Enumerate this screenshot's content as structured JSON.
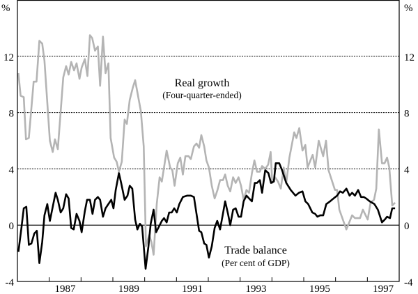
{
  "chart_data": {
    "type": "line",
    "title": "",
    "xlabel": "",
    "ylabel": "%",
    "ylim": [
      -4,
      16
    ],
    "xlim": [
      1986,
      1998
    ],
    "grid": true,
    "y_ticks": [
      -4,
      0,
      4,
      8,
      12
    ],
    "x_tick_labels": [
      "1987",
      "1989",
      "1991",
      "1993",
      "1995",
      "1997"
    ],
    "annotations": [
      {
        "text": "Real growth",
        "sub": "(Four-quarter-ended)",
        "series": "Real growth"
      },
      {
        "text": "Trade balance",
        "sub": "(Per cent of GDP)",
        "series": "Trade balance"
      }
    ],
    "series": [
      {
        "name": "Real growth",
        "color": "#b4b4b4",
        "x": [
          1986.03,
          1986.1,
          1986.2,
          1986.27,
          1986.36,
          1986.51,
          1986.6,
          1986.69,
          1986.78,
          1986.85,
          1987.02,
          1987.11,
          1987.18,
          1987.27,
          1987.44,
          1987.53,
          1987.61,
          1987.69,
          1987.78,
          1987.86,
          1987.95,
          1988.02,
          1988.12,
          1988.2,
          1988.28,
          1988.35,
          1988.44,
          1988.53,
          1988.6,
          1988.69,
          1988.77,
          1988.86,
          1988.93,
          1989.04,
          1989.12,
          1989.19,
          1989.28,
          1989.37,
          1989.44,
          1989.53,
          1989.63,
          1989.7,
          1989.88,
          1989.97,
          1990.04,
          1990.14,
          1990.21,
          1990.28,
          1990.38,
          1990.47,
          1990.54,
          1990.69,
          1990.8,
          1990.87,
          1990.94,
          1991.04,
          1991.12,
          1991.2,
          1991.28,
          1991.38,
          1991.45,
          1991.55,
          1991.63,
          1991.71,
          1991.78,
          1991.87,
          1991.94,
          1992.02,
          1992.11,
          1992.2,
          1992.29,
          1992.37,
          1992.46,
          1992.53,
          1992.61,
          1992.69,
          1992.78,
          1992.86,
          1992.95,
          1993.03,
          1993.11,
          1993.2,
          1993.28,
          1993.37,
          1993.45,
          1993.53,
          1993.62,
          1993.69,
          1993.79,
          1993.88,
          1993.96,
          1994.01,
          1994.1,
          1994.19,
          1994.28,
          1994.37,
          1994.45,
          1994.55,
          1994.7,
          1994.77,
          1994.86,
          1994.96,
          1995.05,
          1995.12,
          1995.28,
          1995.36,
          1995.47,
          1995.61,
          1995.7,
          1995.78,
          1995.98,
          1996.05,
          1996.12,
          1996.34,
          1996.52,
          1996.61,
          1996.77,
          1996.86,
          1997.01,
          1997.1,
          1997.21,
          1997.28,
          1997.36,
          1997.46,
          1997.54,
          1997.62,
          1997.69,
          1997.78,
          1997.87
        ],
        "y": [
          10.8,
          9.2,
          9.1,
          6.1,
          6.2,
          10.2,
          10.2,
          13.1,
          12.9,
          11.7,
          6.0,
          5.2,
          6.1,
          5.4,
          10.5,
          11.3,
          10.7,
          11.6,
          11.0,
          11.5,
          10.4,
          11.2,
          11.8,
          10.6,
          13.5,
          13.3,
          12.4,
          12.7,
          9.9,
          13.4,
          10.8,
          11.5,
          6.2,
          4.8,
          4.5,
          3.8,
          4.5,
          7.5,
          7.2,
          8.9,
          9.8,
          10.3,
          8.1,
          5.6,
          -1.5,
          -0.7,
          -1.2,
          -2.1,
          1.5,
          3.4,
          3.1,
          5.3,
          4.1,
          3.9,
          2.8,
          4.4,
          4.8,
          3.6,
          4.9,
          4.9,
          4.7,
          5.6,
          5.8,
          5.5,
          6.4,
          5.6,
          4.6,
          4.1,
          2.8,
          1.9,
          2.5,
          3.2,
          3.2,
          3.6,
          2.8,
          2.4,
          3.4,
          3.0,
          3.4,
          2.8,
          1.8,
          2.5,
          2.3,
          3.7,
          4.6,
          3.8,
          3.8,
          4.2,
          4.0,
          4.3,
          5.2,
          3.0,
          3.4,
          3.1,
          2.6,
          4.1,
          3.0,
          4.8,
          6.6,
          6.2,
          6.9,
          5.3,
          5.7,
          4.1,
          5.0,
          4.1,
          6.0,
          4.9,
          6.0,
          3.9,
          2.5,
          2.5,
          1.1,
          -0.3,
          0.7,
          0.5,
          0.5,
          1.1,
          0.4,
          1.6,
          1.8,
          2.6,
          6.8,
          4.4,
          4.4,
          4.8,
          4.1,
          1.4,
          1.6
        ]
      },
      {
        "name": "Trade balance",
        "color": "#000000",
        "x": [
          1986.03,
          1986.12,
          1986.2,
          1986.28,
          1986.36,
          1986.44,
          1986.53,
          1986.61,
          1986.69,
          1986.78,
          1986.85,
          1986.94,
          1987.02,
          1987.11,
          1987.2,
          1987.27,
          1987.36,
          1987.44,
          1987.53,
          1987.61,
          1987.69,
          1987.77,
          1987.86,
          1987.95,
          1988.02,
          1988.12,
          1988.19,
          1988.28,
          1988.36,
          1988.44,
          1988.53,
          1988.6,
          1988.69,
          1988.77,
          1988.86,
          1988.95,
          1989.02,
          1989.09,
          1989.19,
          1989.26,
          1989.37,
          1989.46,
          1989.53,
          1989.61,
          1989.7,
          1989.77,
          1989.85,
          1989.92,
          1990.03,
          1990.12,
          1990.19,
          1990.28,
          1990.36,
          1990.45,
          1990.54,
          1990.61,
          1990.69,
          1990.77,
          1990.85,
          1990.93,
          1991.01,
          1991.09,
          1991.2,
          1991.34,
          1991.45,
          1991.55,
          1991.71,
          1991.78,
          1991.87,
          1991.94,
          1992.02,
          1992.11,
          1992.2,
          1992.28,
          1992.37,
          1992.45,
          1992.53,
          1992.62,
          1992.69,
          1992.78,
          1992.86,
          1992.95,
          1993.03,
          1993.11,
          1993.2,
          1993.28,
          1993.37,
          1993.46,
          1993.53,
          1993.62,
          1993.69,
          1993.79,
          1993.89,
          1993.97,
          1994.06,
          1994.12,
          1994.23,
          1994.32,
          1994.45,
          1994.59,
          1994.74,
          1994.85,
          1994.96,
          1995.05,
          1995.14,
          1995.27,
          1995.36,
          1995.43,
          1995.52,
          1995.61,
          1995.71,
          1995.83,
          1995.94,
          1996.05,
          1996.14,
          1996.23,
          1996.34,
          1996.44,
          1996.52,
          1996.61,
          1996.71,
          1996.8,
          1996.89,
          1996.96,
          1997.07,
          1997.22,
          1997.33,
          1997.46,
          1997.55,
          1997.62,
          1997.71,
          1997.78,
          1997.87
        ],
        "y": [
          -1.9,
          -0.3,
          1.2,
          1.3,
          -1.4,
          -1.3,
          -0.6,
          -0.4,
          -2.7,
          -1.2,
          0.7,
          1.5,
          0.3,
          1.3,
          2.3,
          1.8,
          0.9,
          1.2,
          2.2,
          1.9,
          -0.2,
          -0.3,
          0.8,
          0.3,
          -0.5,
          1.0,
          1.8,
          1.8,
          0.8,
          1.8,
          2.0,
          1.8,
          0.6,
          1.2,
          1.5,
          1.8,
          1.2,
          2.5,
          3.7,
          3.0,
          1.8,
          2.1,
          2.8,
          2.6,
          0.4,
          -0.3,
          0.1,
          -0.1,
          -3.1,
          -1.5,
          0.1,
          1.1,
          -0.5,
          -0.1,
          0.3,
          0.5,
          0.2,
          0.9,
          0.9,
          1.2,
          0.9,
          1.5,
          2.0,
          2.1,
          2.1,
          2.0,
          -0.4,
          -0.5,
          -1.3,
          -1.4,
          -2.3,
          -1.5,
          -0.2,
          0.3,
          -0.3,
          0.7,
          1.7,
          0.8,
          0.0,
          1.1,
          1.2,
          0.6,
          0.6,
          1.7,
          2.1,
          1.9,
          1.7,
          3.0,
          3.0,
          3.2,
          2.3,
          3.9,
          3.7,
          3.0,
          3.1,
          4.4,
          4.4,
          3.9,
          3.0,
          2.5,
          2.1,
          2.3,
          2.4,
          1.7,
          1.5,
          0.9,
          0.8,
          0.6,
          0.7,
          0.7,
          1.5,
          1.7,
          1.9,
          2.1,
          2.4,
          2.3,
          2.6,
          2.1,
          2.3,
          2.1,
          2.5,
          2.0,
          2.0,
          1.9,
          1.7,
          1.5,
          1.1,
          0.2,
          0.4,
          0.6,
          0.5,
          1.2,
          1.2
        ]
      }
    ]
  }
}
